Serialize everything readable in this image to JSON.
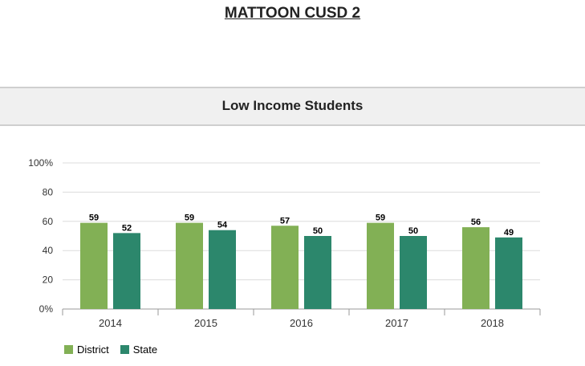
{
  "page_title": "MATTOON CUSD 2",
  "section_title": "Low Income Students",
  "colors": {
    "district": "#82b055",
    "state": "#2c876c"
  },
  "chart_data": {
    "type": "bar",
    "categories": [
      "2014",
      "2015",
      "2016",
      "2017",
      "2018"
    ],
    "series": [
      {
        "name": "District",
        "values": [
          59,
          59,
          57,
          59,
          56
        ]
      },
      {
        "name": "State",
        "values": [
          52,
          54,
          50,
          50,
          49
        ]
      }
    ],
    "ylim": [
      0,
      100
    ],
    "yticks": [
      "0%",
      "20",
      "40",
      "60",
      "80",
      "100%"
    ],
    "grid": true,
    "legend": "bottom-left"
  }
}
